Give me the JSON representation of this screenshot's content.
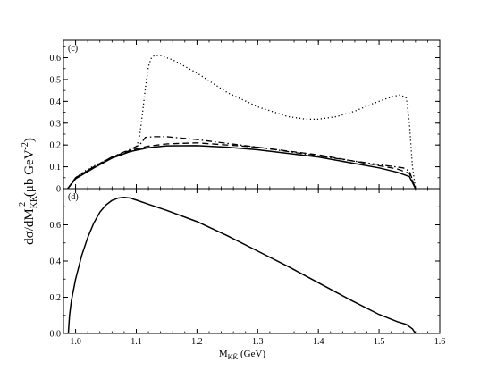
{
  "chart_data": [
    {
      "type": "line",
      "panel_label": "(c)",
      "xlim": [
        0.98,
        1.6
      ],
      "ylim": [
        0,
        0.68
      ],
      "xticks": [
        1.0,
        1.1,
        1.2,
        1.3,
        1.4,
        1.5,
        1.6
      ],
      "yticks": [
        0,
        0.1,
        0.2,
        0.3,
        0.4,
        0.5,
        0.6
      ],
      "ytick_labels": [
        "0",
        "0.1",
        "0.2",
        "0.3",
        "0.4",
        "0.5",
        "0.6"
      ],
      "series": [
        {
          "style": "dotted",
          "x": [
            0.987,
            1.0,
            1.02,
            1.05,
            1.08,
            1.1,
            1.105,
            1.11,
            1.115,
            1.12,
            1.125,
            1.13,
            1.14,
            1.16,
            1.2,
            1.25,
            1.3,
            1.35,
            1.38,
            1.4,
            1.43,
            1.46,
            1.49,
            1.52,
            1.535,
            1.545,
            1.55,
            1.555,
            1.56
          ],
          "y": [
            0.0,
            0.05,
            0.09,
            0.13,
            0.16,
            0.19,
            0.23,
            0.34,
            0.46,
            0.56,
            0.6,
            0.61,
            0.61,
            0.59,
            0.53,
            0.44,
            0.375,
            0.33,
            0.318,
            0.318,
            0.33,
            0.355,
            0.39,
            0.42,
            0.43,
            0.415,
            0.3,
            0.1,
            0.0
          ]
        },
        {
          "style": "dash-dot",
          "x": [
            0.987,
            1.0,
            1.03,
            1.06,
            1.09,
            1.105,
            1.11,
            1.115,
            1.13,
            1.15,
            1.2,
            1.3,
            1.4,
            1.5,
            1.54,
            1.55,
            1.56
          ],
          "y": [
            0.0,
            0.05,
            0.1,
            0.145,
            0.18,
            0.2,
            0.215,
            0.235,
            0.238,
            0.238,
            0.225,
            0.19,
            0.15,
            0.11,
            0.095,
            0.08,
            0.0
          ]
        },
        {
          "style": "dashed",
          "x": [
            0.987,
            1.0,
            1.03,
            1.06,
            1.09,
            1.12,
            1.15,
            1.2,
            1.3,
            1.4,
            1.5,
            1.53,
            1.55,
            1.56
          ],
          "y": [
            0.0,
            0.05,
            0.1,
            0.145,
            0.175,
            0.195,
            0.205,
            0.21,
            0.19,
            0.155,
            0.105,
            0.09,
            0.07,
            0.0
          ]
        },
        {
          "style": "solid",
          "x": [
            0.987,
            1.0,
            1.03,
            1.06,
            1.09,
            1.12,
            1.15,
            1.2,
            1.25,
            1.3,
            1.4,
            1.5,
            1.53,
            1.55,
            1.56
          ],
          "y": [
            0.0,
            0.045,
            0.095,
            0.14,
            0.17,
            0.188,
            0.196,
            0.197,
            0.19,
            0.178,
            0.145,
            0.095,
            0.075,
            0.055,
            0.0
          ]
        }
      ]
    },
    {
      "type": "line",
      "panel_label": "(d)",
      "xlim": [
        0.98,
        1.6
      ],
      "ylim": [
        0,
        0.8
      ],
      "xticks": [
        1.0,
        1.1,
        1.2,
        1.3,
        1.4,
        1.5,
        1.6
      ],
      "xtick_labels": [
        "1.0",
        "1.1",
        "1.2",
        "1.3",
        "1.4",
        "1.5",
        "1.6"
      ],
      "yticks": [
        0,
        0.2,
        0.4,
        0.6
      ],
      "ytick_labels": [
        "0.0",
        "0.2",
        "0.4",
        "0.6"
      ],
      "series": [
        {
          "style": "solid",
          "x": [
            0.988,
            0.99,
            0.993,
            1.0,
            1.01,
            1.02,
            1.03,
            1.04,
            1.05,
            1.06,
            1.07,
            1.08,
            1.09,
            1.1,
            1.12,
            1.15,
            1.2,
            1.25,
            1.3,
            1.35,
            1.4,
            1.45,
            1.5,
            1.53,
            1.545,
            1.555,
            1.56
          ],
          "y": [
            0.0,
            0.1,
            0.18,
            0.3,
            0.43,
            0.53,
            0.61,
            0.67,
            0.71,
            0.735,
            0.748,
            0.752,
            0.748,
            0.737,
            0.714,
            0.68,
            0.618,
            0.54,
            0.455,
            0.37,
            0.28,
            0.19,
            0.105,
            0.065,
            0.05,
            0.025,
            0.0
          ]
        }
      ]
    }
  ],
  "labels": {
    "xlabel_main": "M",
    "xlabel_sub": "KK̄",
    "xlabel_unit": " (GeV)",
    "ylabel_main": "dσ/dM",
    "ylabel_sub": "KK̄",
    "ylabel_sup": "2",
    "ylabel_unit": " (μb GeV",
    "ylabel_unit_sup": "-2",
    "ylabel_close": ")"
  }
}
